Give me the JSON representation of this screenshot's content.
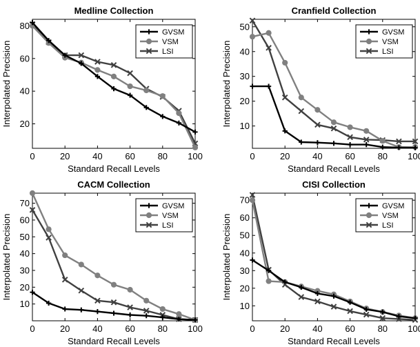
{
  "chart_data": [
    {
      "type": "line",
      "title": "Medline Collection",
      "xlabel": "Standard Recall Levels",
      "ylabel": "Interpolated Precision",
      "xlim": [
        0,
        100
      ],
      "ylim": [
        5,
        84
      ],
      "xticks": [
        0,
        20,
        40,
        60,
        80,
        100
      ],
      "yticks": [
        20,
        40,
        60,
        80
      ],
      "x": [
        0,
        10,
        20,
        30,
        40,
        50,
        60,
        70,
        80,
        90,
        100
      ],
      "legend": "top-right",
      "series": [
        {
          "name": "GVSM",
          "color": "#000000",
          "marker": "plus",
          "values": [
            82,
            71,
            62,
            57,
            49,
            41.5,
            37.5,
            30,
            24.5,
            20.5,
            15
          ]
        },
        {
          "name": "VSM",
          "color": "#808080",
          "marker": "circle",
          "values": [
            80,
            69.5,
            60.5,
            57.5,
            53,
            49,
            43,
            40.5,
            37,
            26.5,
            5.5
          ]
        },
        {
          "name": "LSI",
          "color": "#404040",
          "marker": "x",
          "values": [
            81,
            70,
            62,
            62,
            58,
            56,
            51,
            41.5,
            36.5,
            28,
            8
          ]
        }
      ]
    },
    {
      "type": "line",
      "title": "Cranfield Collection",
      "xlabel": "Standard Recall Levels",
      "ylabel": "Interpolated Precision",
      "xlim": [
        0,
        100
      ],
      "ylim": [
        1,
        53
      ],
      "xticks": [
        0,
        20,
        40,
        60,
        80,
        100
      ],
      "yticks": [
        10,
        20,
        30,
        40,
        50
      ],
      "x": [
        0,
        10,
        20,
        30,
        40,
        50,
        60,
        70,
        80,
        90,
        100
      ],
      "legend": "top-right",
      "series": [
        {
          "name": "GVSM",
          "color": "#000000",
          "marker": "plus",
          "values": [
            26,
            26,
            8,
            3.5,
            3.3,
            3,
            2.5,
            2.5,
            1.5,
            1.3,
            1.2
          ]
        },
        {
          "name": "VSM",
          "color": "#808080",
          "marker": "circle",
          "values": [
            46,
            47.5,
            35.5,
            21.5,
            16.5,
            11.5,
            9.5,
            8,
            4,
            1.5,
            1.5
          ]
        },
        {
          "name": "LSI",
          "color": "#404040",
          "marker": "x",
          "values": [
            52.5,
            41.5,
            21.5,
            16,
            10.5,
            9,
            5.5,
            4.5,
            4.3,
            3.8,
            3.8
          ]
        }
      ]
    },
    {
      "type": "line",
      "title": "CACM Collection",
      "xlabel": "Standard Recall Levels",
      "ylabel": "Interpolated Precision",
      "xlim": [
        0,
        100
      ],
      "ylim": [
        0,
        76
      ],
      "xticks": [
        0,
        20,
        40,
        60,
        80,
        100
      ],
      "yticks": [
        10,
        20,
        30,
        40,
        50,
        60,
        70
      ],
      "x": [
        0,
        10,
        20,
        30,
        40,
        50,
        60,
        70,
        80,
        90,
        100
      ],
      "legend": "top-right",
      "series": [
        {
          "name": "GVSM",
          "color": "#000000",
          "marker": "plus",
          "values": [
            17,
            10.5,
            7,
            6.5,
            5.5,
            4.5,
            3.5,
            3,
            2,
            1,
            0.5
          ]
        },
        {
          "name": "VSM",
          "color": "#808080",
          "marker": "circle",
          "values": [
            76,
            54.5,
            39,
            33.5,
            27,
            21.5,
            18.5,
            12,
            7,
            4,
            0.5
          ]
        },
        {
          "name": "LSI",
          "color": "#404040",
          "marker": "x",
          "values": [
            66,
            49.5,
            24.5,
            18,
            12,
            11,
            8,
            6,
            3.5,
            1,
            0.5
          ]
        }
      ]
    },
    {
      "type": "line",
      "title": "CISI Collection",
      "xlabel": "Standard Recall Levels",
      "ylabel": "Interpolated Precision",
      "xlim": [
        0,
        100
      ],
      "ylim": [
        1.5,
        74
      ],
      "xticks": [
        0,
        20,
        40,
        60,
        80,
        100
      ],
      "yticks": [
        10,
        20,
        30,
        40,
        50,
        60,
        70
      ],
      "x": [
        0,
        10,
        20,
        30,
        40,
        50,
        60,
        70,
        80,
        90,
        100
      ],
      "legend": "top-right",
      "series": [
        {
          "name": "GVSM",
          "color": "#000000",
          "marker": "plus",
          "values": [
            36,
            30,
            23.5,
            20.5,
            17,
            15.5,
            12,
            8,
            6.5,
            4,
            3
          ]
        },
        {
          "name": "VSM",
          "color": "#808080",
          "marker": "circle",
          "values": [
            70,
            24,
            23.5,
            21,
            18.5,
            16.5,
            12.5,
            8.5,
            6.5,
            4.5,
            3
          ]
        },
        {
          "name": "LSI",
          "color": "#404040",
          "marker": "x",
          "values": [
            73,
            30.5,
            22,
            15,
            12.5,
            9.5,
            7,
            5,
            3,
            2.5,
            2
          ]
        }
      ]
    }
  ]
}
